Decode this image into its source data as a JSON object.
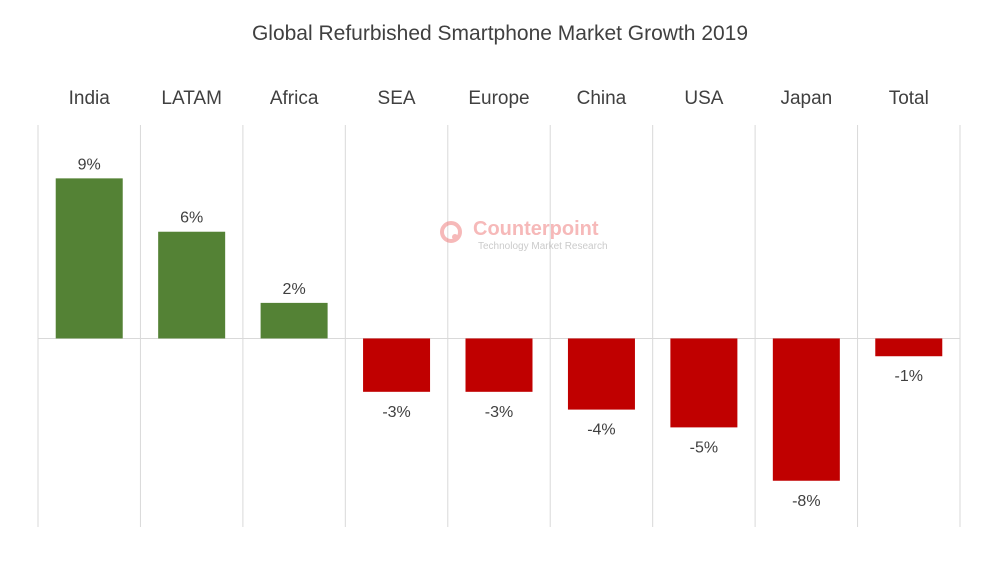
{
  "chart_data": {
    "type": "bar",
    "title": "Global Refurbished Smartphone Market Growth 2019",
    "categories": [
      "India",
      "LATAM",
      "Africa",
      "SEA",
      "Europe",
      "China",
      "USA",
      "Japan",
      "Total"
    ],
    "values": [
      9,
      6,
      2,
      -3,
      -3,
      -4,
      -5,
      -8,
      -1
    ],
    "data_labels": [
      "9%",
      "6%",
      "2%",
      "-3%",
      "-3%",
      "-4%",
      "-5%",
      "-8%",
      "-1%"
    ],
    "ylim": [
      -10.6,
      12
    ],
    "grid": "vertical",
    "category_labels_position": "top",
    "colors": {
      "positive": "#548235",
      "negative": "#c00000",
      "text": "#404040",
      "grid": "#d9d9d9"
    }
  },
  "watermark": {
    "name": "Counterpoint",
    "subtitle": "Technology Market Research",
    "color": "#f08080"
  }
}
